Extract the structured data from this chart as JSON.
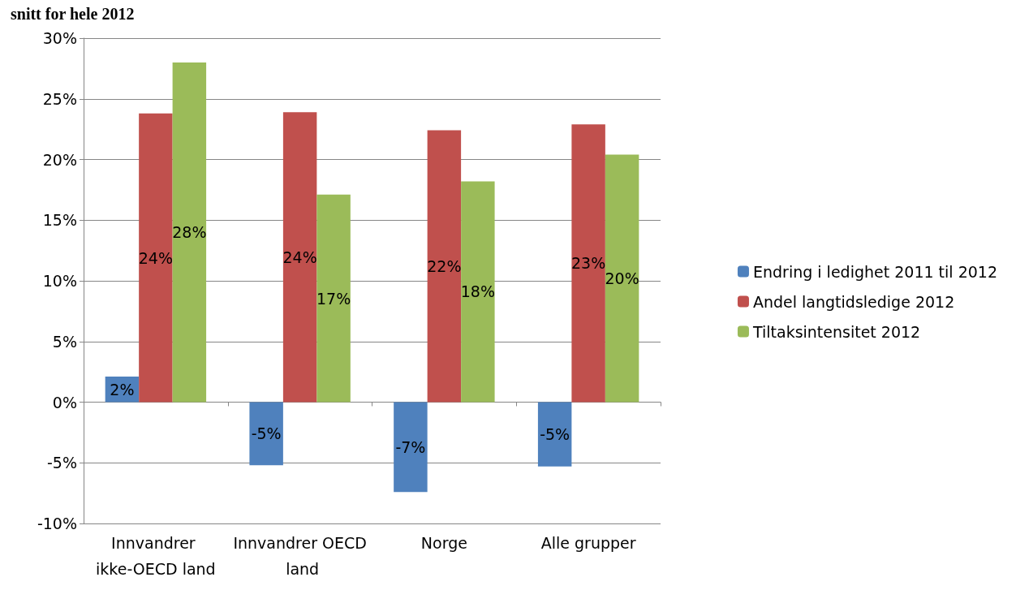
{
  "chart_data": {
    "type": "bar",
    "title": "snitt for hele 2012",
    "categories": [
      "Innvandrer ikke-OECD land",
      "Innvandrer OECD land",
      "Norge",
      "Alle grupper"
    ],
    "series": [
      {
        "name": "Endring i ledighet 2011 til 2012",
        "color": "#4f81bd",
        "values": [
          2.1,
          -5.2,
          -7.4,
          -5.3
        ],
        "value_labels": [
          "2%",
          "-5%",
          "-7%",
          "-5%"
        ]
      },
      {
        "name": "Andel langtidsledige 2012",
        "color": "#c0504d",
        "values": [
          23.8,
          23.9,
          22.4,
          22.9
        ],
        "value_labels": [
          "24%",
          "24%",
          "22%",
          "23%"
        ]
      },
      {
        "name": "Tiltaksintensitet 2012",
        "color": "#9bbb59",
        "values": [
          28.0,
          17.1,
          18.2,
          20.4
        ],
        "value_labels": [
          "28%",
          "17%",
          "18%",
          "20%"
        ]
      }
    ],
    "ylim": [
      -10,
      30
    ],
    "yticks": [
      {
        "value": -10,
        "label": "-10%"
      },
      {
        "value": -5,
        "label": "-5%"
      },
      {
        "value": 0,
        "label": "0%"
      },
      {
        "value": 5,
        "label": "5%"
      },
      {
        "value": 10,
        "label": "10%"
      },
      {
        "value": 15,
        "label": "15%"
      },
      {
        "value": 20,
        "label": "20%"
      },
      {
        "value": 25,
        "label": "25%"
      },
      {
        "value": 30,
        "label": "30%"
      }
    ],
    "grid": "y",
    "legend": "right"
  }
}
